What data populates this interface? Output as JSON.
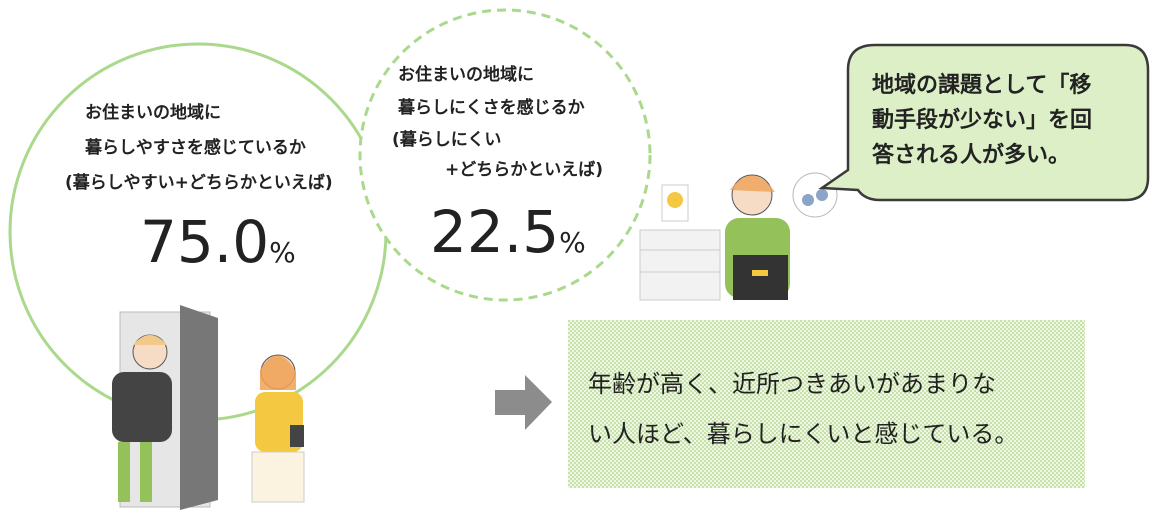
{
  "left_circle": {
    "lines": [
      "お住まいの地域に",
      "暮らしやすさを感じているか",
      "(暮らしやすい+どちらかといえば)"
    ],
    "value": "75.0",
    "unit": "%"
  },
  "right_circle": {
    "lines": [
      "お住まいの地域に",
      "暮らしにくさを感じるか",
      "(暮らしにくい",
      "+どちらかといえば)"
    ],
    "value": "22.5",
    "unit": "%"
  },
  "speech_bubble": {
    "lines": [
      "地域の課題として「移",
      "動手段が少ない」を回",
      "答される人が多い。"
    ]
  },
  "note": {
    "lines": [
      "年齢が高く、近所つきあいがあまりな",
      "い人ほど、暮らしにくいと感じている。"
    ]
  }
}
